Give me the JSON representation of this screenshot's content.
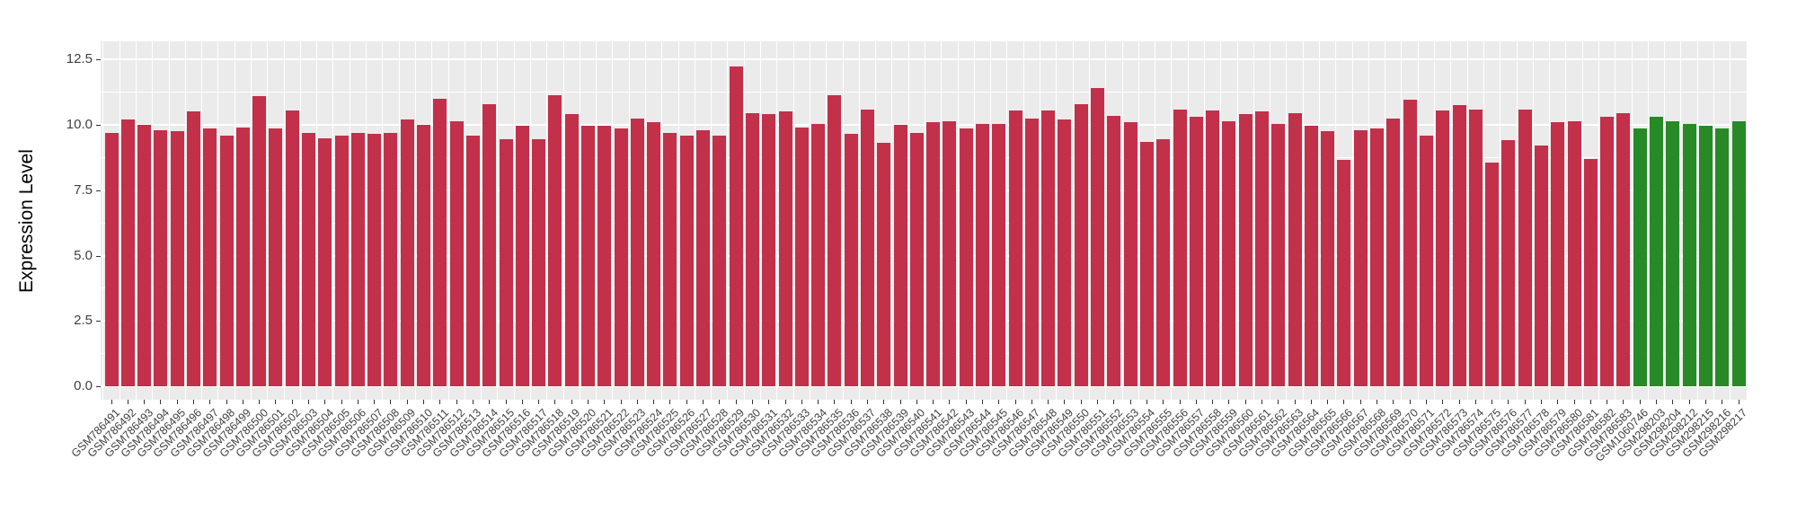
{
  "figure": {
    "background": "#FFFFFF",
    "panel_background": "#EBEBEB",
    "grid_color": "#FFFFFF",
    "axis_text_color": "#404040",
    "tick_mark_color": "#333333"
  },
  "chart_data": {
    "type": "bar",
    "title": "",
    "xlabel": "",
    "ylabel": "Expression Level",
    "ylim": [
      0,
      13.2
    ],
    "yticks": [
      0,
      2.5,
      5,
      7.5,
      10,
      12.5
    ],
    "ytick_labels": [
      "0.0",
      "2.5",
      "5.0",
      "7.5",
      "10.0",
      "12.5"
    ],
    "grid": "major-and-minor-white-on-gray",
    "legend_position": "none",
    "group_colors": {
      "red": "#C2304A",
      "green": "#278A27"
    },
    "categories": [
      "GSM786491",
      "GSM786492",
      "GSM786493",
      "GSM786494",
      "GSM786495",
      "GSM786496",
      "GSM786497",
      "GSM786498",
      "GSM786499",
      "GSM786500",
      "GSM786501",
      "GSM786502",
      "GSM786503",
      "GSM786504",
      "GSM786505",
      "GSM786506",
      "GSM786507",
      "GSM786508",
      "GSM786509",
      "GSM786510",
      "GSM786511",
      "GSM786512",
      "GSM786513",
      "GSM786514",
      "GSM786515",
      "GSM786516",
      "GSM786517",
      "GSM786518",
      "GSM786519",
      "GSM786520",
      "GSM786521",
      "GSM786522",
      "GSM786523",
      "GSM786524",
      "GSM786525",
      "GSM786526",
      "GSM786527",
      "GSM786528",
      "GSM786529",
      "GSM786530",
      "GSM786531",
      "GSM786532",
      "GSM786533",
      "GSM786534",
      "GSM786535",
      "GSM786536",
      "GSM786537",
      "GSM786538",
      "GSM786539",
      "GSM786540",
      "GSM786541",
      "GSM786542",
      "GSM786543",
      "GSM786544",
      "GSM786545",
      "GSM786546",
      "GSM786547",
      "GSM786548",
      "GSM786549",
      "GSM786550",
      "GSM786551",
      "GSM786552",
      "GSM786553",
      "GSM786554",
      "GSM786555",
      "GSM786556",
      "GSM786557",
      "GSM786558",
      "GSM786559",
      "GSM786560",
      "GSM786561",
      "GSM786562",
      "GSM786563",
      "GSM786564",
      "GSM786565",
      "GSM786566",
      "GSM786567",
      "GSM786568",
      "GSM786569",
      "GSM786570",
      "GSM786571",
      "GSM786572",
      "GSM786573",
      "GSM786574",
      "GSM786575",
      "GSM786576",
      "GSM786577",
      "GSM786578",
      "GSM786579",
      "GSM786580",
      "GSM786581",
      "GSM786582",
      "GSM786583",
      "GSM1060746",
      "GSM298203",
      "GSM298204",
      "GSM298212",
      "GSM298215",
      "GSM298216",
      "GSM298217"
    ],
    "values": [
      9.7,
      10.2,
      10.0,
      9.8,
      9.75,
      10.5,
      9.85,
      9.6,
      9.9,
      11.1,
      9.85,
      10.55,
      9.7,
      9.5,
      9.6,
      9.7,
      9.65,
      9.7,
      10.2,
      10.0,
      11.0,
      10.15,
      9.6,
      10.8,
      9.45,
      9.95,
      9.45,
      11.15,
      10.4,
      9.95,
      9.95,
      9.85,
      10.25,
      10.1,
      9.7,
      9.6,
      9.8,
      9.6,
      12.25,
      10.45,
      10.4,
      10.5,
      9.9,
      10.05,
      11.15,
      9.65,
      10.6,
      9.3,
      10.0,
      9.7,
      10.1,
      10.15,
      9.85,
      10.05,
      10.05,
      10.55,
      10.25,
      10.55,
      10.2,
      10.8,
      11.4,
      10.35,
      10.1,
      9.35,
      9.45,
      10.6,
      10.3,
      10.55,
      10.15,
      10.4,
      10.5,
      10.05,
      10.45,
      9.95,
      9.75,
      8.65,
      9.8,
      9.85,
      10.25,
      10.95,
      9.6,
      10.55,
      10.75,
      10.6,
      8.55,
      9.4,
      10.6,
      9.2,
      10.1,
      10.15,
      8.7,
      10.3,
      10.45,
      9.85,
      10.3,
      10.15,
      10.05,
      9.95,
      9.85,
      10.15
    ],
    "groups": [
      "red",
      "red",
      "red",
      "red",
      "red",
      "red",
      "red",
      "red",
      "red",
      "red",
      "red",
      "red",
      "red",
      "red",
      "red",
      "red",
      "red",
      "red",
      "red",
      "red",
      "red",
      "red",
      "red",
      "red",
      "red",
      "red",
      "red",
      "red",
      "red",
      "red",
      "red",
      "red",
      "red",
      "red",
      "red",
      "red",
      "red",
      "red",
      "red",
      "red",
      "red",
      "red",
      "red",
      "red",
      "red",
      "red",
      "red",
      "red",
      "red",
      "red",
      "red",
      "red",
      "red",
      "red",
      "red",
      "red",
      "red",
      "red",
      "red",
      "red",
      "red",
      "red",
      "red",
      "red",
      "red",
      "red",
      "red",
      "red",
      "red",
      "red",
      "red",
      "red",
      "red",
      "red",
      "red",
      "red",
      "red",
      "red",
      "red",
      "red",
      "red",
      "red",
      "red",
      "red",
      "red",
      "red",
      "red",
      "red",
      "red",
      "red",
      "red",
      "red",
      "red",
      "green",
      "green",
      "green",
      "green",
      "green",
      "green",
      "green"
    ]
  }
}
